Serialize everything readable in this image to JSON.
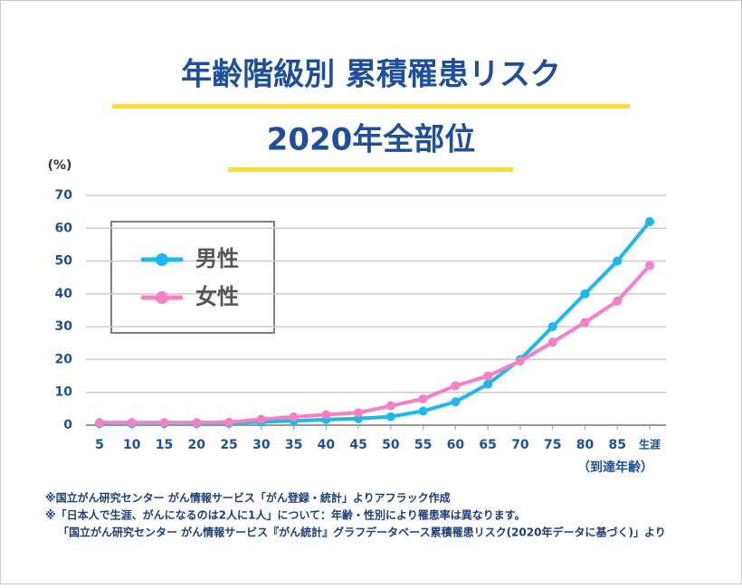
{
  "chart_data": {
    "type": "line",
    "title": "年齢階級別 累積罹患リスク",
    "subtitle": "2020年全部位",
    "y_label": "(%)",
    "x_label": "（到達年齢）",
    "categories": [
      "5",
      "10",
      "15",
      "20",
      "25",
      "30",
      "35",
      "40",
      "45",
      "50",
      "55",
      "60",
      "65",
      "70",
      "75",
      "80",
      "85",
      "生涯"
    ],
    "series": [
      {
        "name": "男性",
        "color": "#1cb8f0",
        "values": [
          0.5,
          0.5,
          0.5,
          0.5,
          0.6,
          1.0,
          1.3,
          1.7,
          2.0,
          2.6,
          4.3,
          7.1,
          12.5,
          20,
          30,
          40,
          50,
          62
        ]
      },
      {
        "name": "女性",
        "color": "#f77fc4",
        "values": [
          0.8,
          0.8,
          0.8,
          0.8,
          0.9,
          1.8,
          2.5,
          3.2,
          3.8,
          5.9,
          8.0,
          12,
          15,
          19.5,
          25.3,
          31.3,
          37.8,
          48.6
        ]
      }
    ],
    "ylim": [
      0,
      70
    ],
    "yticks": [
      0,
      10,
      20,
      30,
      40,
      50,
      60,
      70
    ],
    "grid": true,
    "legend": "upper left",
    "notes": [
      "※国立がん研究センター がん情報サービス「がん登録・統計」よりアフラック作成",
      "※「日本人で生涯、がんになるのは2人に1人」について：年齢・性別により罹患率は異なります。",
      "「国立がん研究センター がん情報サービス『がん統計』グラフデータベース累積罹患リスク(2020年データに基づく)」より"
    ]
  }
}
